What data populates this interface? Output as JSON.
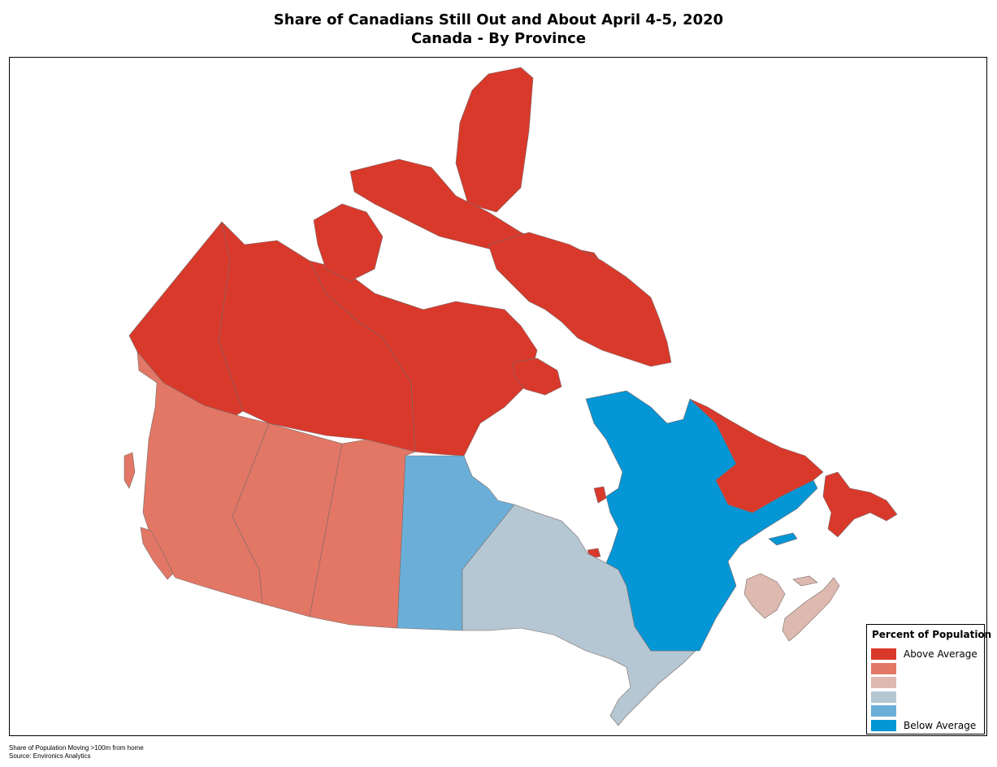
{
  "title_line1": "Share of Canadians Still Out and About April 4-5, 2020",
  "title_line2": "Canada - By Province",
  "legend": {
    "title": "Percent of Population",
    "items": [
      {
        "label": "Above Average",
        "color": "#d9392b"
      },
      {
        "label": "",
        "color": "#e27766"
      },
      {
        "label": "",
        "color": "#ddb9b0"
      },
      {
        "label": "",
        "color": "#b4c7d3"
      },
      {
        "label": "",
        "color": "#6bafd8"
      },
      {
        "label": "Below Average",
        "color": "#0596d6"
      }
    ]
  },
  "regions": [
    {
      "name": "Yukon",
      "color": "#d9392b"
    },
    {
      "name": "Northwest Territories",
      "color": "#d9392b"
    },
    {
      "name": "Nunavut",
      "color": "#d9392b"
    },
    {
      "name": "British Columbia",
      "color": "#e27766"
    },
    {
      "name": "Alberta",
      "color": "#e27766"
    },
    {
      "name": "Saskatchewan",
      "color": "#e27766"
    },
    {
      "name": "Manitoba",
      "color": "#6bafd8"
    },
    {
      "name": "Ontario",
      "color": "#b4c7d3"
    },
    {
      "name": "Quebec",
      "color": "#0596d6"
    },
    {
      "name": "Newfoundland and Labrador",
      "color": "#d9392b"
    },
    {
      "name": "New Brunswick",
      "color": "#ddb9b0"
    },
    {
      "name": "Nova Scotia",
      "color": "#ddb9b0"
    },
    {
      "name": "Prince Edward Island",
      "color": "#ddb9b0"
    }
  ],
  "footer_line1": "Share of Population Moving >100m from home",
  "footer_line2": "Source: Environics Analytics"
}
